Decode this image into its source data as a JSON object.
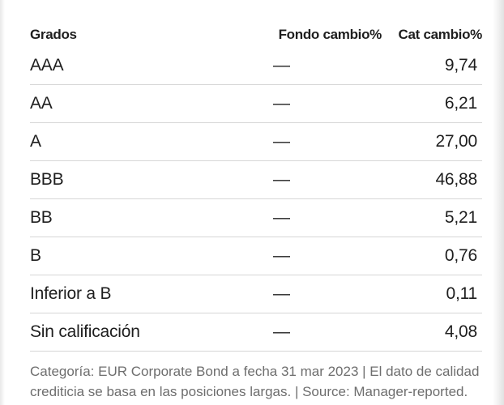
{
  "table": {
    "headers": {
      "grade": "Grados",
      "fund": "Fondo",
      "fund_change": "cambio%",
      "cat": "Cat",
      "cat_change": "cambio%"
    },
    "rows": [
      {
        "grade": "AAA",
        "fund": "—",
        "cat": "9,74"
      },
      {
        "grade": "AA",
        "fund": "—",
        "cat": "6,21"
      },
      {
        "grade": "A",
        "fund": "—",
        "cat": "27,00"
      },
      {
        "grade": "BBB",
        "fund": "—",
        "cat": "46,88"
      },
      {
        "grade": "BB",
        "fund": "—",
        "cat": "5,21"
      },
      {
        "grade": "B",
        "fund": "—",
        "cat": "0,76"
      },
      {
        "grade": "Inferior a B",
        "fund": "—",
        "cat": "0,11"
      },
      {
        "grade": "Sin calificación",
        "fund": "—",
        "cat": "4,08"
      }
    ]
  },
  "footnote": "Categoría: EUR Corporate Bond a fecha 31 mar 2023 | El dato de calidad crediticia se basa en las posiciones largas. | Source: Manager-reported."
}
